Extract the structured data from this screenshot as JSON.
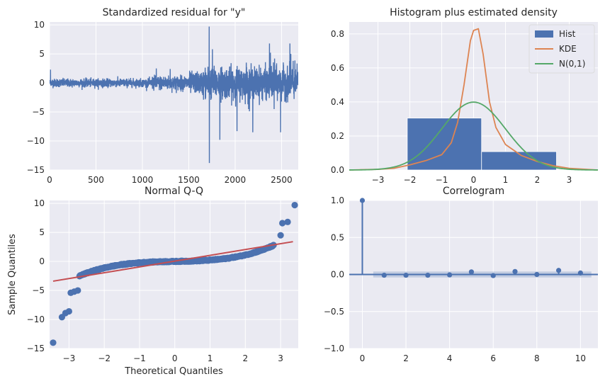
{
  "chart_data": [
    {
      "id": "residual",
      "type": "line",
      "title": "Standardized residual for \"y\"",
      "xlim": [
        0,
        2680
      ],
      "ylim": [
        -15,
        10.5
      ],
      "xticks": [
        0,
        500,
        1000,
        1500,
        2000,
        2500
      ],
      "yticks": [
        -15,
        -10,
        -5,
        0,
        5,
        10
      ],
      "x_ticklabels": [
        "0",
        "500",
        "1000",
        "1500",
        "2000",
        "2500"
      ],
      "y_ticklabels": [
        "−15",
        "−10",
        "−5",
        "0",
        "5",
        "10"
      ],
      "series_color": "#4c72b0",
      "n_points": 2680,
      "spikes": [
        {
          "x": 1720,
          "y": 9.7
        },
        {
          "x": 1722,
          "y": -13.8
        },
        {
          "x": 1755,
          "y": 5.8
        },
        {
          "x": 1835,
          "y": -9.8
        },
        {
          "x": 2020,
          "y": -8.3
        },
        {
          "x": 2120,
          "y": 3.5
        },
        {
          "x": 2145,
          "y": -4.5
        },
        {
          "x": 2190,
          "y": -8.5
        },
        {
          "x": 2370,
          "y": 6.8
        },
        {
          "x": 2380,
          "y": 5.2
        },
        {
          "x": 2420,
          "y": -4.5
        },
        {
          "x": 2425,
          "y": 4.2
        },
        {
          "x": 2490,
          "y": -8.5
        },
        {
          "x": 2590,
          "y": 6.8
        },
        {
          "x": 2600,
          "y": 5.0
        },
        {
          "x": 2625,
          "y": 3.8
        },
        {
          "x": 1150,
          "y": 2.5
        },
        {
          "x": 1300,
          "y": 2.4
        },
        {
          "x": 10,
          "y": 2.3
        }
      ]
    },
    {
      "id": "histogram",
      "type": "bar",
      "title": "Histogram plus estimated density",
      "xlim": [
        -3.9,
        3.9
      ],
      "ylim": [
        0,
        0.87
      ],
      "xticks": [
        -3,
        -2,
        -1,
        0,
        1,
        2,
        3
      ],
      "yticks": [
        0.0,
        0.2,
        0.4,
        0.6,
        0.8
      ],
      "x_ticklabels": [
        "−3",
        "−2",
        "−1",
        "0",
        "1",
        "2",
        "3"
      ],
      "y_ticklabels": [
        "0.0",
        "0.2",
        "0.4",
        "0.6",
        "0.8"
      ],
      "bins": [
        {
          "x0": -2.08,
          "x1": 0.25,
          "value": 0.305
        },
        {
          "x0": 0.25,
          "x1": 2.6,
          "value": 0.108
        }
      ],
      "kde": {
        "x": [
          -3.9,
          -3.0,
          -2.5,
          -2.0,
          -1.5,
          -1.0,
          -0.7,
          -0.5,
          -0.3,
          -0.1,
          0.0,
          0.15,
          0.3,
          0.5,
          0.7,
          1.0,
          1.5,
          2.0,
          2.5,
          3.0,
          3.9
        ],
        "y": [
          0.0,
          0.004,
          0.01,
          0.03,
          0.055,
          0.09,
          0.16,
          0.28,
          0.5,
          0.76,
          0.82,
          0.83,
          0.68,
          0.4,
          0.25,
          0.15,
          0.085,
          0.05,
          0.025,
          0.01,
          0.0
        ]
      },
      "legend": [
        "Hist",
        "KDE",
        "N(0,1)"
      ],
      "legend_position": "top-right",
      "colors": {
        "hist": "#4c72b0",
        "kde": "#dd8452",
        "normal": "#55a868"
      }
    },
    {
      "id": "qq",
      "type": "scatter",
      "title": "Normal Q-Q",
      "xlabel": "Theoretical Quantiles",
      "ylabel": "Sample Quantiles",
      "xlim": [
        -3.55,
        3.5
      ],
      "ylim": [
        -15,
        10.5
      ],
      "xticks": [
        -3,
        -2,
        -1,
        0,
        1,
        2,
        3
      ],
      "yticks": [
        -15,
        -10,
        -5,
        0,
        5,
        10
      ],
      "x_ticklabels": [
        "−3",
        "−2",
        "−1",
        "0",
        "1",
        "2",
        "3"
      ],
      "y_ticklabels": [
        "−15",
        "−10",
        "−5",
        "0",
        "5",
        "10"
      ],
      "line": {
        "x": [
          -3.45,
          3.35
        ],
        "y": [
          -3.4,
          3.4
        ]
      },
      "outliers": [
        {
          "x": -3.45,
          "y": -14.0
        },
        {
          "x": -3.2,
          "y": -9.6
        },
        {
          "x": -3.1,
          "y": -8.9
        },
        {
          "x": -3.0,
          "y": -8.6
        },
        {
          "x": -2.95,
          "y": -5.4
        },
        {
          "x": -2.85,
          "y": -5.2
        },
        {
          "x": -2.75,
          "y": -5.0
        },
        {
          "x": 3.0,
          "y": 4.5
        },
        {
          "x": 3.05,
          "y": 6.6
        },
        {
          "x": 3.2,
          "y": 6.8
        },
        {
          "x": 3.4,
          "y": 9.7
        }
      ],
      "colors": {
        "points": "#4c72b0",
        "line": "#c44e52"
      }
    },
    {
      "id": "correlogram",
      "type": "stem",
      "title": "Correlogram",
      "xlim": [
        -0.6,
        10.8
      ],
      "ylim": [
        -1.0,
        1.0
      ],
      "xticks": [
        0,
        2,
        4,
        6,
        8,
        10
      ],
      "yticks": [
        -1.0,
        -0.5,
        0.0,
        0.5,
        1.0
      ],
      "x_ticklabels": [
        "0",
        "2",
        "4",
        "6",
        "8",
        "10"
      ],
      "y_ticklabels": [
        "−1.0",
        "−0.5",
        "0.0",
        "0.5",
        "1.0"
      ],
      "lags": [
        0,
        1,
        2,
        3,
        4,
        5,
        6,
        7,
        8,
        9,
        10
      ],
      "values": [
        1.0,
        -0.01,
        -0.01,
        -0.01,
        -0.005,
        0.035,
        -0.015,
        0.04,
        0.0,
        0.055,
        0.02
      ],
      "conf_band": 0.04,
      "colors": {
        "stem": "#4c72b0",
        "band": "#4c72b0"
      }
    }
  ]
}
